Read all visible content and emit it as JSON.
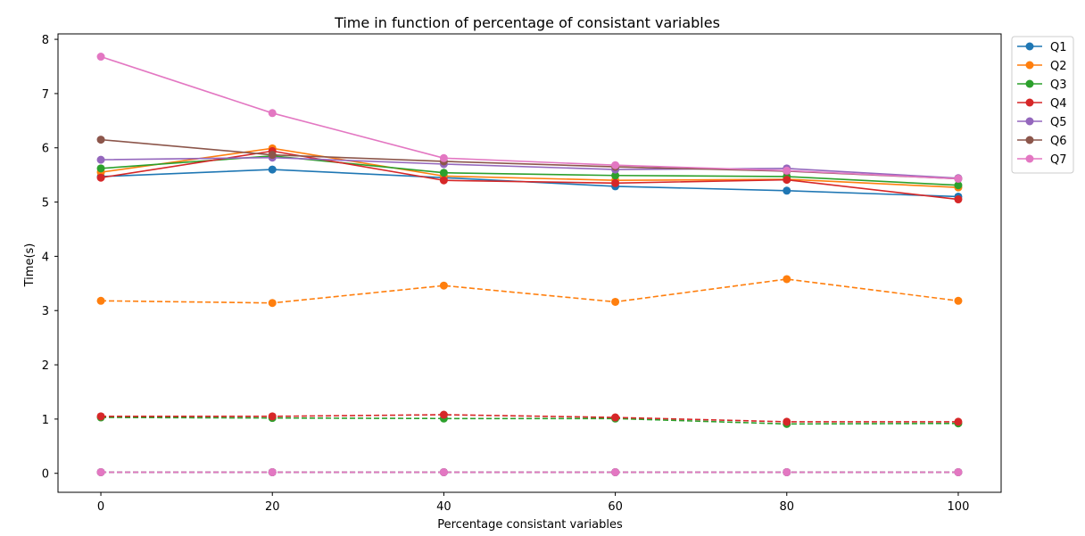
{
  "chart_data": {
    "type": "line",
    "title": "Time in function of percentage of consistant variables",
    "xlabel": "Percentage consistant variables",
    "ylabel": "Time(s)",
    "x": [
      0,
      20,
      40,
      60,
      80,
      100
    ],
    "xticks": [
      0,
      20,
      40,
      60,
      80,
      100
    ],
    "yticks": [
      0,
      1,
      2,
      3,
      4,
      5,
      6,
      7,
      8
    ],
    "xlim": [
      -5,
      105
    ],
    "ylim": [
      -0.35,
      8.1
    ],
    "grid": false,
    "legend_position": "outside top-right",
    "series": [
      {
        "name": "Q1",
        "color": "#1f77b4",
        "style": "solid",
        "values": [
          5.47,
          5.6,
          5.45,
          5.29,
          5.21,
          5.1
        ]
      },
      {
        "name": "Q2",
        "color": "#ff7f0e",
        "style": "solid",
        "values": [
          5.55,
          5.99,
          5.48,
          5.4,
          5.42,
          5.27
        ]
      },
      {
        "name": "Q3",
        "color": "#2ca02c",
        "style": "solid",
        "values": [
          5.62,
          5.85,
          5.54,
          5.49,
          5.47,
          5.31
        ]
      },
      {
        "name": "Q4",
        "color": "#d62728",
        "style": "solid",
        "values": [
          5.45,
          5.94,
          5.4,
          5.35,
          5.41,
          5.05
        ]
      },
      {
        "name": "Q5",
        "color": "#9467bd",
        "style": "solid",
        "values": [
          5.78,
          5.82,
          5.7,
          5.6,
          5.62,
          5.44
        ]
      },
      {
        "name": "Q6",
        "color": "#8c564b",
        "style": "solid",
        "values": [
          6.15,
          5.87,
          5.75,
          5.65,
          5.57,
          5.43
        ]
      },
      {
        "name": "Q7",
        "color": "#e377c2",
        "style": "solid",
        "values": [
          7.68,
          6.64,
          5.81,
          5.68,
          5.58,
          5.43
        ]
      },
      {
        "color": "#1f77b4",
        "style": "dashed",
        "values": [
          0.02,
          0.02,
          0.02,
          0.02,
          0.02,
          0.02
        ]
      },
      {
        "color": "#ff7f0e",
        "style": "dashed",
        "values": [
          3.18,
          3.14,
          3.46,
          3.16,
          3.58,
          3.18
        ]
      },
      {
        "color": "#2ca02c",
        "style": "dashed",
        "values": [
          1.03,
          1.02,
          1.01,
          1.01,
          0.91,
          0.92
        ]
      },
      {
        "color": "#d62728",
        "style": "dashed",
        "values": [
          1.05,
          1.05,
          1.08,
          1.03,
          0.95,
          0.95
        ]
      },
      {
        "color": "#9467bd",
        "style": "dashed",
        "values": [
          0.02,
          0.02,
          0.02,
          0.02,
          0.02,
          0.02
        ]
      },
      {
        "color": "#8c564b",
        "style": "dashed",
        "values": [
          0.02,
          0.02,
          0.02,
          0.02,
          0.02,
          0.02
        ]
      },
      {
        "color": "#e377c2",
        "style": "dashed",
        "values": [
          0.02,
          0.02,
          0.02,
          0.02,
          0.02,
          0.02
        ]
      }
    ]
  }
}
